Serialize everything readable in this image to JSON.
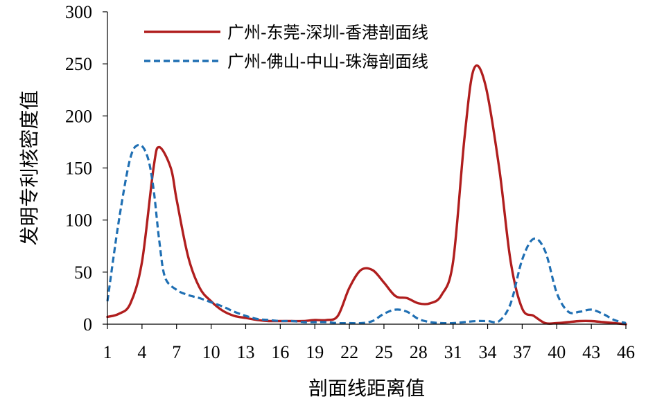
{
  "chart_data": {
    "type": "line",
    "title": "",
    "xlabel": "剖面线距离值",
    "ylabel": "发明专利核密度值",
    "xlim": [
      1,
      46
    ],
    "ylim": [
      0,
      300
    ],
    "x_ticks": [
      1,
      4,
      7,
      10,
      13,
      16,
      19,
      22,
      25,
      28,
      31,
      34,
      37,
      40,
      43,
      46
    ],
    "y_ticks": [
      0,
      50,
      100,
      150,
      200,
      250,
      300
    ],
    "grid": false,
    "legend_position": "top",
    "series": [
      {
        "name": "广州-东莞-深圳-香港剖面线",
        "color": "#b01e1e",
        "style": "solid",
        "points": [
          [
            1,
            7
          ],
          [
            2,
            10
          ],
          [
            3,
            20
          ],
          [
            4,
            60
          ],
          [
            5,
            150
          ],
          [
            5.5,
            170
          ],
          [
            6.5,
            150
          ],
          [
            7,
            120
          ],
          [
            8,
            65
          ],
          [
            9,
            35
          ],
          [
            10,
            22
          ],
          [
            11,
            13
          ],
          [
            12,
            8
          ],
          [
            13,
            6
          ],
          [
            14,
            4
          ],
          [
            15,
            3
          ],
          [
            16,
            3
          ],
          [
            17,
            3
          ],
          [
            18,
            3
          ],
          [
            19,
            4
          ],
          [
            20,
            4
          ],
          [
            21,
            8
          ],
          [
            22,
            35
          ],
          [
            23,
            52
          ],
          [
            24,
            52
          ],
          [
            25,
            40
          ],
          [
            26,
            27
          ],
          [
            27,
            25
          ],
          [
            28,
            20
          ],
          [
            29,
            20
          ],
          [
            30,
            28
          ],
          [
            31,
            60
          ],
          [
            32,
            180
          ],
          [
            32.8,
            245
          ],
          [
            33.8,
            230
          ],
          [
            35,
            150
          ],
          [
            36,
            60
          ],
          [
            37,
            15
          ],
          [
            38,
            8
          ],
          [
            39,
            1
          ],
          [
            40,
            1
          ],
          [
            41,
            2
          ],
          [
            42,
            3
          ],
          [
            43,
            3
          ],
          [
            44,
            2
          ],
          [
            45,
            1
          ],
          [
            46,
            0
          ]
        ]
      },
      {
        "name": "广州-佛山-中山-珠海剖面线",
        "color": "#1f6fb3",
        "style": "dashed",
        "points": [
          [
            1,
            22
          ],
          [
            2,
            100
          ],
          [
            3,
            160
          ],
          [
            3.8,
            172
          ],
          [
            4.5,
            160
          ],
          [
            5,
            130
          ],
          [
            5.5,
            80
          ],
          [
            6,
            45
          ],
          [
            7,
            33
          ],
          [
            8,
            28
          ],
          [
            9,
            25
          ],
          [
            10,
            21
          ],
          [
            11,
            17
          ],
          [
            12,
            12
          ],
          [
            13,
            8
          ],
          [
            14,
            5
          ],
          [
            15,
            4
          ],
          [
            16,
            3
          ],
          [
            17,
            3
          ],
          [
            18,
            2
          ],
          [
            19,
            2
          ],
          [
            20,
            2
          ],
          [
            21,
            1
          ],
          [
            22,
            1
          ],
          [
            23,
            1
          ],
          [
            24,
            3
          ],
          [
            25,
            10
          ],
          [
            26,
            14
          ],
          [
            27,
            12
          ],
          [
            28,
            5
          ],
          [
            29,
            2
          ],
          [
            30,
            1
          ],
          [
            31,
            1
          ],
          [
            32,
            2
          ],
          [
            33,
            3
          ],
          [
            34,
            3
          ],
          [
            35,
            3
          ],
          [
            36,
            20
          ],
          [
            37,
            62
          ],
          [
            38,
            82
          ],
          [
            39,
            70
          ],
          [
            40,
            30
          ],
          [
            41,
            12
          ],
          [
            42,
            12
          ],
          [
            43,
            14
          ],
          [
            44,
            10
          ],
          [
            45,
            4
          ],
          [
            46,
            1
          ]
        ]
      }
    ]
  }
}
